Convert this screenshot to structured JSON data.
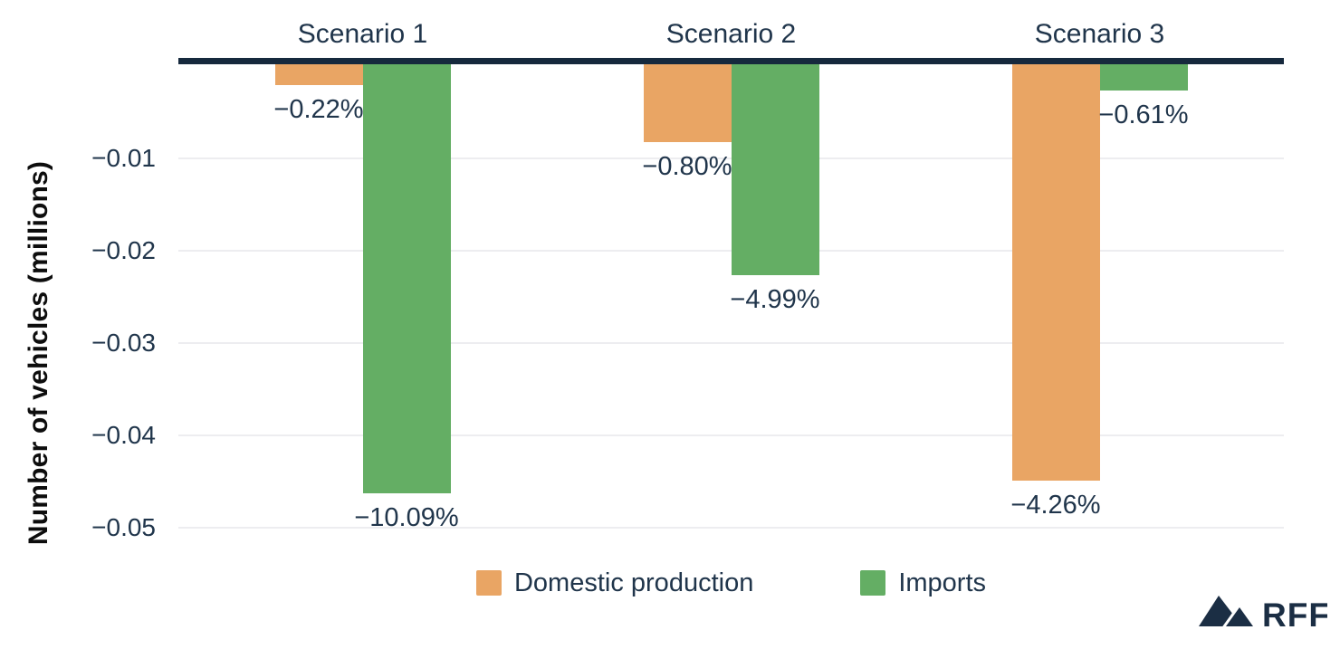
{
  "chart_data": {
    "type": "bar",
    "title": "",
    "ylabel": "Number of vehicles (millions)",
    "xlabel": "",
    "categories": [
      "Scenario 1",
      "Scenario 2",
      "Scenario 3"
    ],
    "series": [
      {
        "name": "Domestic production",
        "color": "#E9A564",
        "values": [
          -0.0023,
          -0.0084,
          -0.0451
        ],
        "labels": [
          "−0.22%",
          "−0.80%",
          "−4.26%"
        ]
      },
      {
        "name": "Imports",
        "color": "#64AE64",
        "values": [
          -0.0465,
          -0.0228,
          -0.0028
        ],
        "labels": [
          "−10.09%",
          "−4.99%",
          "−0.61%"
        ]
      }
    ],
    "y_ticks": [
      {
        "value": -0.01,
        "label": "−0.01"
      },
      {
        "value": -0.02,
        "label": "−0.02"
      },
      {
        "value": -0.03,
        "label": "−0.03"
      },
      {
        "value": -0.04,
        "label": "−0.04"
      },
      {
        "value": -0.05,
        "label": "−0.05"
      }
    ],
    "ylim": [
      -0.055,
      0
    ],
    "grid": true,
    "legend_position": "bottom",
    "colors": {
      "axis_line": "#16293D",
      "gridline": "#EDEDF0",
      "text": "#20354B",
      "axis_title": "#0D0D0D"
    }
  },
  "logo": {
    "text": "RFF"
  }
}
